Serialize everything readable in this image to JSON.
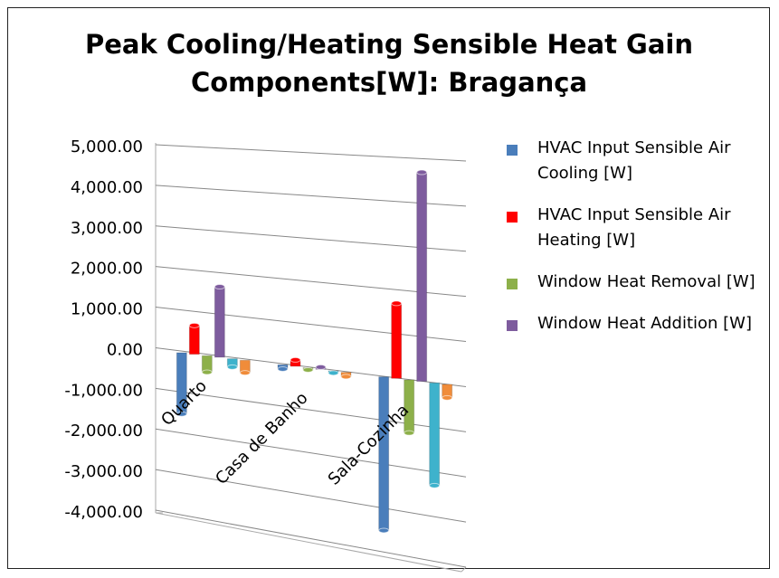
{
  "chart_data": {
    "type": "bar3d",
    "title": "Peak Cooling/Heating Sensible Heat Gain Components[W]: Bragança",
    "categories": [
      "Quarto",
      "Casa de Banho",
      "Sala-Cozinha"
    ],
    "series": [
      {
        "name": "HVAC Input Sensible Air Cooling [W]",
        "color": "#4a7ebb",
        "values": [
          -1500,
          -100,
          -3500
        ]
      },
      {
        "name": "HVAC Input Sensible Air Heating [W]",
        "color": "#ff0000",
        "values": [
          700,
          150,
          1700
        ]
      },
      {
        "name": "Window Heat Removal [W]",
        "color": "#8db04a",
        "values": [
          -400,
          -50,
          -1200
        ]
      },
      {
        "name": "Window Heat Addition [W]",
        "color": "#7e5c9e",
        "values": [
          1700,
          50,
          4700
        ]
      },
      {
        "color": "#3eb2cc",
        "values": [
          -200,
          -50,
          -2300
        ]
      },
      {
        "color": "#f08c3a",
        "values": [
          -300,
          -100,
          -300
        ]
      }
    ],
    "ylim": [
      -4000,
      5000
    ],
    "yticks": [
      {
        "value": -4000,
        "label": "-4,000.00"
      },
      {
        "value": -3000,
        "label": "-3,000.00"
      },
      {
        "value": -2000,
        "label": "-2,000.00"
      },
      {
        "value": -1000,
        "label": "-1,000.00"
      },
      {
        "value": 0,
        "label": "0.00"
      },
      {
        "value": 1000,
        "label": "1,000.00"
      },
      {
        "value": 2000,
        "label": "2,000.00"
      },
      {
        "value": 3000,
        "label": "3,000.00"
      },
      {
        "value": 4000,
        "label": "4,000.00"
      },
      {
        "value": 5000,
        "label": "5,000.00"
      }
    ],
    "grid": true,
    "legend": "right"
  }
}
